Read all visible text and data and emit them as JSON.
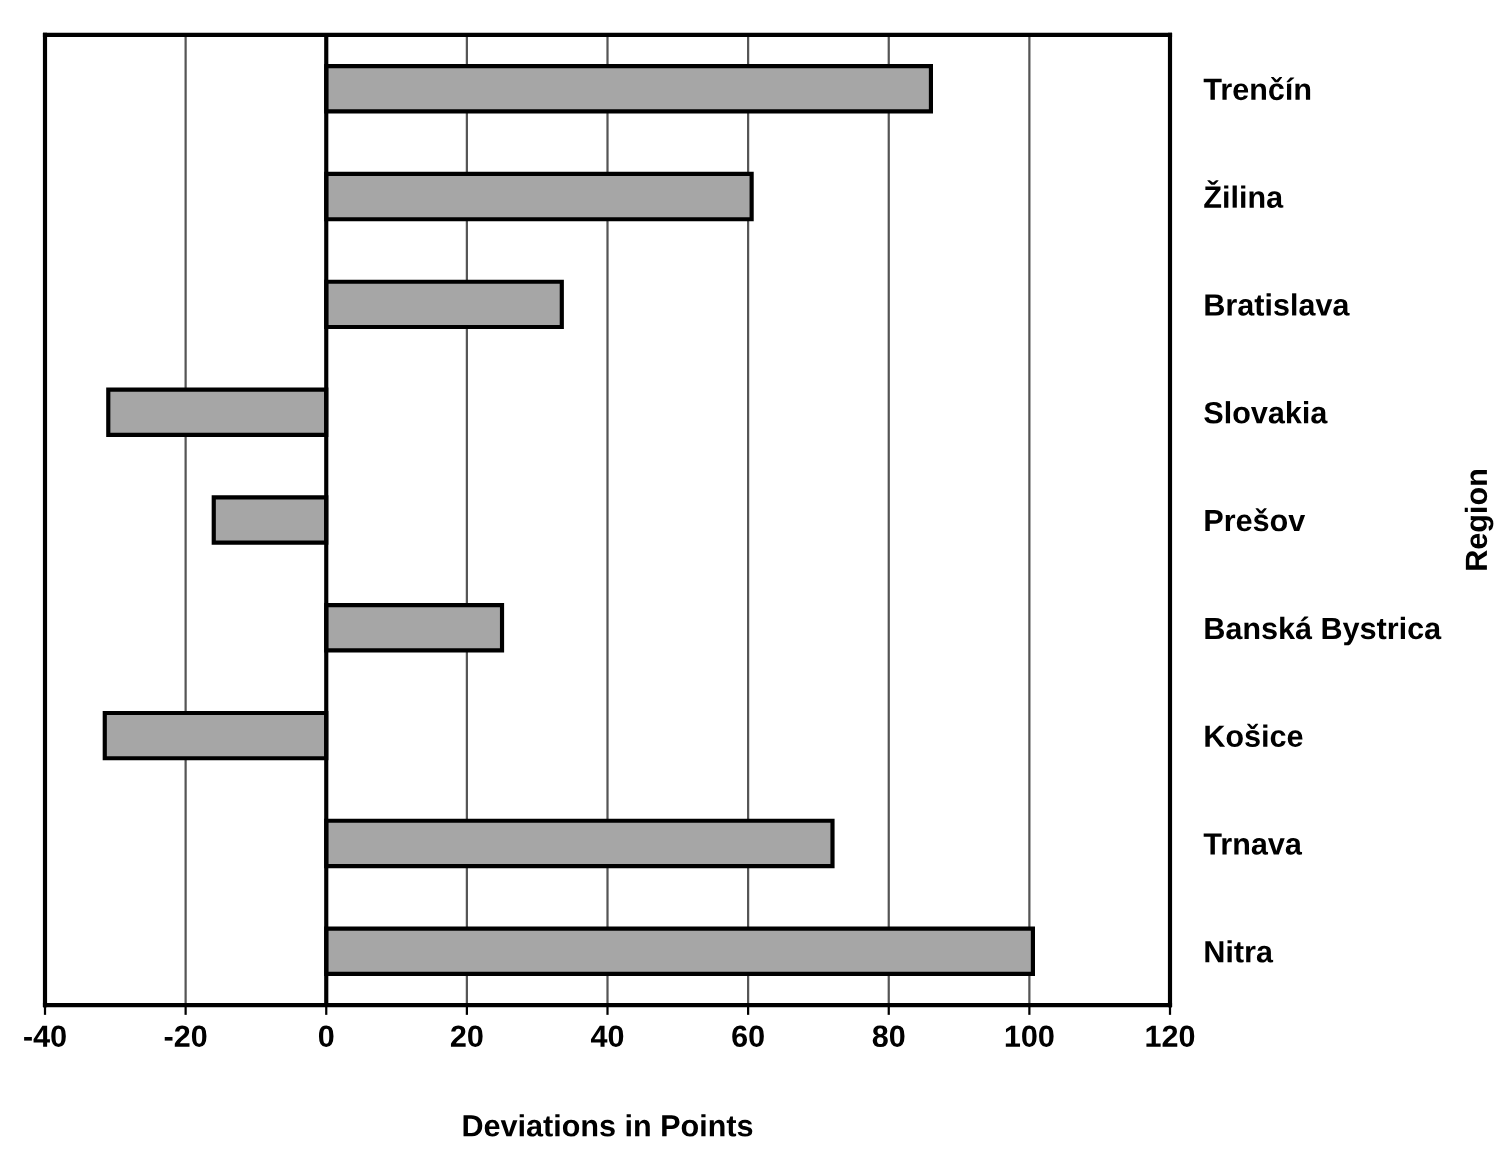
{
  "chart_data": {
    "type": "bar",
    "orientation": "horizontal",
    "xlabel": "Deviations in Points",
    "ylabel": "Region",
    "categories": [
      "Trenčín",
      "Žilina",
      "Bratislava",
      "Slovakia",
      "Prešov",
      "Banská Bystrica",
      "Košice",
      "Trnava",
      "Nitra"
    ],
    "values": [
      86,
      60.5,
      33.5,
      -31,
      -16,
      25,
      -31.5,
      72,
      100.5
    ],
    "color": "#a6a6a6",
    "xlim": [
      -40,
      120
    ],
    "xticks": [
      -40,
      -20,
      0,
      20,
      40,
      60,
      80,
      100,
      120
    ],
    "grid": "x"
  }
}
